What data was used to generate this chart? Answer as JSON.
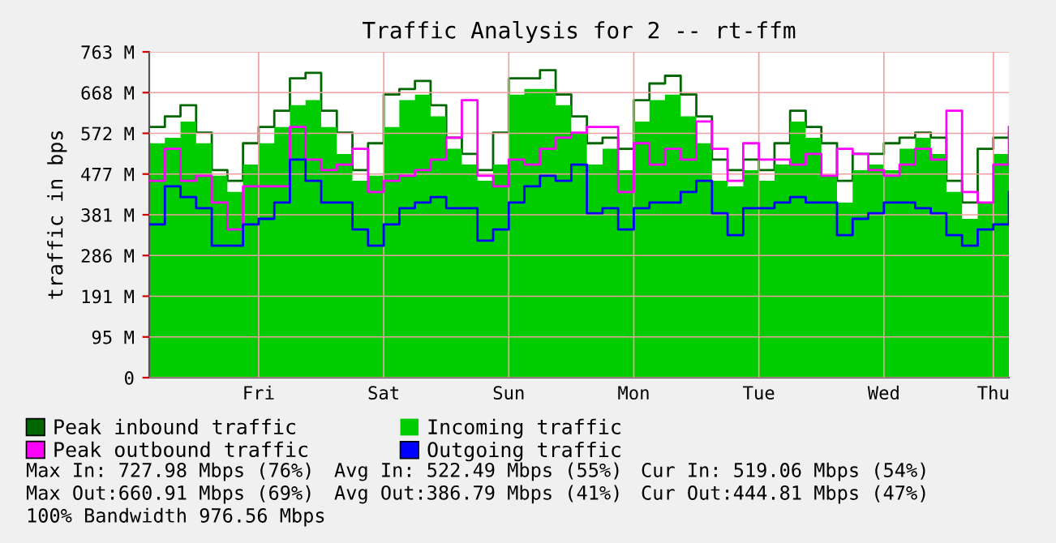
{
  "chart_data": {
    "type": "step",
    "title": "Traffic Analysis for 2 -- rt-ffm",
    "ylabel": "traffic in bps",
    "categories": [
      null,
      null,
      null,
      null,
      null,
      null,
      null,
      "Fri",
      null,
      null,
      null,
      null,
      null,
      null,
      null,
      "Sat",
      null,
      null,
      null,
      null,
      null,
      null,
      null,
      "Sun",
      null,
      null,
      null,
      null,
      null,
      null,
      null,
      "Mon",
      null,
      null,
      null,
      null,
      null,
      null,
      null,
      "Tue",
      null,
      null,
      null,
      null,
      null,
      null,
      null,
      "Wed",
      null,
      null,
      null,
      null,
      null,
      null,
      "Thu",
      null
    ],
    "series": [
      {
        "name": "Peak inbound traffic",
        "color": "#006600",
        "values": [
          587,
          612,
          638,
          574,
          486,
          461,
          549,
          587,
          625,
          701,
          714,
          625,
          574,
          486,
          549,
          663,
          676,
          695,
          638,
          562,
          524,
          486,
          574,
          701,
          701,
          720,
          663,
          612,
          549,
          562,
          536,
          650,
          689,
          707,
          663,
          612,
          511,
          486,
          511,
          486,
          549,
          625,
          587,
          549,
          461,
          524,
          524,
          549,
          562,
          574,
          562,
          461,
          410,
          536,
          562,
          574
        ]
      },
      {
        "name": "Peak outbound traffic",
        "color": "#ff00ff",
        "values": [
          461,
          536,
          461,
          473,
          410,
          347,
          448,
          448,
          448,
          587,
          511,
          486,
          499,
          536,
          435,
          461,
          473,
          486,
          511,
          562,
          650,
          473,
          448,
          511,
          499,
          536,
          562,
          574,
          587,
          587,
          435,
          549,
          499,
          536,
          511,
          600,
          536,
          461,
          549,
          511,
          511,
          499,
          524,
          473,
          536,
          524,
          486,
          473,
          499,
          536,
          511,
          625,
          435,
          410,
          499,
          587
        ]
      },
      {
        "name": "Incoming traffic",
        "type": "area",
        "color": "#00cc00",
        "values": [
          549,
          562,
          600,
          549,
          473,
          435,
          499,
          549,
          587,
          638,
          650,
          587,
          524,
          461,
          473,
          587,
          650,
          663,
          612,
          536,
          499,
          461,
          499,
          663,
          676,
          676,
          638,
          574,
          499,
          536,
          486,
          600,
          650,
          663,
          612,
          549,
          461,
          448,
          486,
          461,
          499,
          600,
          562,
          473,
          410,
          486,
          499,
          486,
          536,
          562,
          524,
          435,
          372,
          410,
          524,
          518
        ]
      },
      {
        "name": "Outgoing traffic",
        "color": "#0000ff",
        "values": [
          359,
          448,
          423,
          397,
          309,
          309,
          359,
          372,
          410,
          511,
          461,
          410,
          410,
          347,
          309,
          359,
          397,
          410,
          423,
          397,
          397,
          321,
          347,
          410,
          448,
          473,
          461,
          499,
          385,
          397,
          347,
          397,
          410,
          410,
          435,
          461,
          385,
          334,
          397,
          397,
          410,
          423,
          410,
          410,
          334,
          372,
          385,
          410,
          410,
          397,
          385,
          334,
          309,
          347,
          359,
          435
        ]
      }
    ],
    "ylim": [
      0,
      763
    ],
    "yticks": [
      0,
      {
        "value": 95.4,
        "label": "95 M"
      },
      {
        "value": 190.8,
        "label": "191 M"
      },
      {
        "value": 286.1,
        "label": "286 M"
      },
      {
        "value": 381.5,
        "label": "381 M"
      },
      {
        "value": 476.9,
        "label": "477 M"
      },
      {
        "value": 572.3,
        "label": "572 M"
      },
      {
        "value": 667.6,
        "label": "668 M"
      },
      {
        "value": 763,
        "label": "763 M"
      }
    ],
    "grid": true,
    "legend": "bottom",
    "annotations": [
      "Max In: 727.98 Mbps (76%)",
      "Avg In: 522.49 Mbps (55%)",
      "Cur In: 519.06 Mbps (54%)",
      "Max Out:660.91 Mbps (69%)",
      "Avg Out:386.79 Mbps (41%)",
      "Cur Out:444.81 Mbps (47%)",
      "100% Bandwidth 976.56 Mbps"
    ]
  }
}
